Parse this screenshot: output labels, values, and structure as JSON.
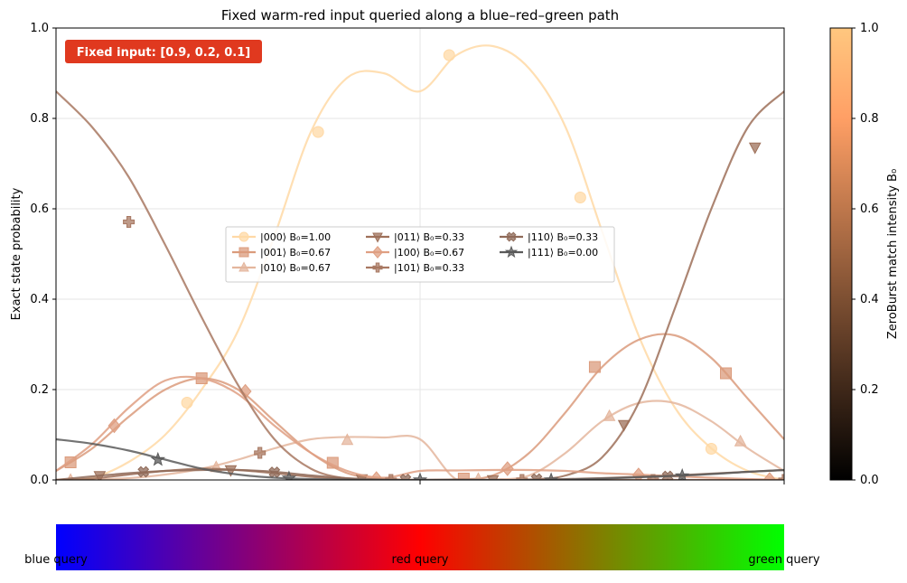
{
  "chart_data": {
    "type": "line",
    "title": "Fixed warm-red input queried along a blue–red–green path",
    "ylabel": "Exact state probability",
    "xlabel": "",
    "ylim": [
      0,
      1
    ],
    "xlim": [
      0,
      1
    ],
    "yticks": [
      0.0,
      0.2,
      0.4,
      0.6,
      0.8,
      1.0
    ],
    "yticklabels": [
      "0.0",
      "0.2",
      "0.4",
      "0.6",
      "0.8",
      "1.0"
    ],
    "grid": true,
    "legend_position": "center",
    "legend_columns": 3,
    "annotation": "Fixed input: [0.9, 0.2, 0.1]",
    "annotation_color": "#e0391f",
    "colorbar": {
      "label": "ZeroBurst match intensity B₀",
      "range": [
        0,
        1
      ],
      "ticks": [
        "0.0",
        "0.2",
        "0.4",
        "0.6",
        "0.8",
        "1.0"
      ],
      "colormap": "copper"
    },
    "gradient_bar": {
      "colors": [
        "#0000ff",
        "#ff0000",
        "#00ff00"
      ],
      "labels": [
        "blue query",
        "red query",
        "green query"
      ]
    },
    "series": [
      {
        "name": "|000⟩  B₀=1.00",
        "color": "#ffd9a6",
        "marker": "circle",
        "x": [
          0,
          0.05,
          0.1,
          0.15,
          0.2,
          0.25,
          0.3,
          0.35,
          0.4,
          0.45,
          0.5,
          0.55,
          0.6,
          0.65,
          0.7,
          0.75,
          0.8,
          0.85,
          0.9,
          0.95,
          1.0
        ],
        "y": [
          0.0,
          0.005,
          0.04,
          0.1,
          0.2,
          0.33,
          0.54,
          0.77,
          0.89,
          0.9,
          0.86,
          0.94,
          0.96,
          0.91,
          0.78,
          0.55,
          0.32,
          0.16,
          0.07,
          0.02,
          0.0
        ],
        "markers_x": [
          0.18,
          0.36,
          0.54,
          0.72,
          0.9
        ],
        "markers_y": [
          0.171,
          0.77,
          0.94,
          0.625,
          0.069
        ]
      },
      {
        "name": "|001⟩  B₀=0.67",
        "color": "#db9b7c",
        "marker": "square",
        "x": [
          0,
          0.05,
          0.1,
          0.15,
          0.2,
          0.25,
          0.3,
          0.35,
          0.4,
          0.45,
          0.5,
          0.55,
          0.6,
          0.65,
          0.7,
          0.75,
          0.8,
          0.85,
          0.9,
          0.95,
          1.0
        ],
        "y": [
          0.02,
          0.07,
          0.14,
          0.2,
          0.225,
          0.2,
          0.13,
          0.06,
          0.015,
          0.003,
          0.0,
          0.001,
          0.01,
          0.06,
          0.15,
          0.25,
          0.31,
          0.32,
          0.27,
          0.18,
          0.09
        ],
        "markers_x": [
          0.02,
          0.2,
          0.38,
          0.56,
          0.74,
          0.92
        ],
        "markers_y": [
          0.039,
          0.225,
          0.038,
          0.003,
          0.25,
          0.236
        ]
      },
      {
        "name": "|010⟩  B₀=0.67",
        "color": "#e4b69d",
        "marker": "triangle-up",
        "x": [
          0,
          0.05,
          0.1,
          0.15,
          0.2,
          0.25,
          0.3,
          0.35,
          0.4,
          0.45,
          0.5,
          0.55,
          0.6,
          0.65,
          0.7,
          0.75,
          0.8,
          0.85,
          0.9,
          0.95,
          1.0
        ],
        "y": [
          0.0,
          0.001,
          0.004,
          0.012,
          0.025,
          0.045,
          0.07,
          0.09,
          0.095,
          0.094,
          0.09,
          0.001,
          0.001,
          0.01,
          0.06,
          0.13,
          0.17,
          0.17,
          0.13,
          0.07,
          0.02
        ],
        "markers_x": [
          0.02,
          0.22,
          0.4,
          0.58,
          0.76,
          0.94
        ],
        "markers_y": [
          0.0,
          0.028,
          0.088,
          0.002,
          0.141,
          0.085
        ]
      },
      {
        "name": "|011⟩  B₀=0.33",
        "color": "#9e7059",
        "marker": "triangle-down",
        "x": [
          0,
          0.05,
          0.1,
          0.15,
          0.2,
          0.25,
          0.3,
          0.35,
          0.4,
          0.45,
          0.5,
          0.55,
          0.6,
          0.65,
          0.7,
          0.75,
          0.8,
          0.85,
          0.9,
          0.95,
          1.0
        ],
        "y": [
          0.0,
          0.003,
          0.012,
          0.02,
          0.025,
          0.022,
          0.015,
          0.007,
          0.002,
          0.0,
          0.0,
          0.001,
          0.0,
          0.001,
          0.01,
          0.05,
          0.17,
          0.38,
          0.6,
          0.78,
          0.86
        ],
        "markers_x": [
          0.06,
          0.24,
          0.42,
          0.6,
          0.78,
          0.96
        ],
        "markers_y": [
          0.009,
          0.022,
          0.002,
          0.0,
          0.122,
          0.736
        ]
      },
      {
        "name": "|100⟩  B₀=0.67",
        "color": "#df9f82",
        "marker": "diamond",
        "x": [
          0,
          0.05,
          0.1,
          0.15,
          0.2,
          0.25,
          0.3,
          0.35,
          0.4,
          0.45,
          0.5,
          0.55,
          0.6,
          0.65,
          0.7,
          0.75,
          0.8,
          0.85,
          0.9,
          0.95,
          1.0
        ],
        "y": [
          0.02,
          0.08,
          0.16,
          0.22,
          0.225,
          0.19,
          0.12,
          0.06,
          0.02,
          0.005,
          0.02,
          0.021,
          0.022,
          0.022,
          0.02,
          0.015,
          0.012,
          0.008,
          0.005,
          0.002,
          0.0
        ],
        "markers_x": [
          0.08,
          0.26,
          0.44,
          0.62,
          0.8,
          0.98
        ],
        "markers_y": [
          0.12,
          0.196,
          0.003,
          0.025,
          0.011,
          0.001
        ]
      },
      {
        "name": "|101⟩  B₀=0.33",
        "color": "#a87862",
        "marker": "plus",
        "x": [
          0,
          0.05,
          0.1,
          0.15,
          0.2,
          0.25,
          0.3,
          0.35,
          0.4,
          0.45,
          0.5,
          0.55,
          0.6,
          0.65,
          0.7,
          0.75,
          0.8,
          0.85,
          0.9,
          0.95,
          1.0
        ],
        "y": [
          0.86,
          0.78,
          0.67,
          0.52,
          0.36,
          0.21,
          0.09,
          0.025,
          0.003,
          0.0,
          0.0,
          0.0,
          0.0,
          0.0,
          0.0,
          0.0,
          0.0,
          0.0,
          0.0,
          0.0,
          0.0
        ],
        "markers_x": [
          0.1,
          0.28,
          0.46,
          0.64,
          0.82,
          1.0
        ],
        "markers_y": [
          0.571,
          0.06,
          0.0,
          0.0,
          0.0,
          0.0
        ]
      },
      {
        "name": "|110⟩  B₀=0.33",
        "color": "#8f6a58",
        "marker": "x",
        "x": [
          0,
          0.05,
          0.1,
          0.15,
          0.2,
          0.25,
          0.3,
          0.35,
          0.4,
          0.45,
          0.5,
          0.55,
          0.6,
          0.65,
          0.7,
          0.75,
          0.8,
          0.85,
          0.9,
          0.95,
          1.0
        ],
        "y": [
          0.0,
          0.008,
          0.015,
          0.02,
          0.022,
          0.022,
          0.018,
          0.01,
          0.004,
          0.001,
          0.0,
          0.0,
          0.0,
          0.0,
          0.002,
          0.004,
          0.007,
          0.01,
          0.014,
          0.018,
          0.022
        ],
        "markers_x": [
          0.12,
          0.3,
          0.48,
          0.66,
          0.84
        ],
        "markers_y": [
          0.018,
          0.017,
          0.001,
          0.002,
          0.008
        ]
      },
      {
        "name": "|111⟩  B₀=0.00",
        "color": "#5a5a5a",
        "marker": "star",
        "x": [
          0,
          0.05,
          0.1,
          0.15,
          0.2,
          0.25,
          0.3,
          0.35,
          0.4,
          0.45,
          0.5,
          0.55,
          0.6,
          0.65,
          0.7,
          0.75,
          0.8,
          0.85,
          0.9,
          0.95,
          1.0
        ],
        "y": [
          0.09,
          0.08,
          0.065,
          0.045,
          0.025,
          0.012,
          0.005,
          0.002,
          0.001,
          0.0,
          0.0,
          0.0,
          0.0,
          0.0,
          0.001,
          0.003,
          0.006,
          0.009,
          0.013,
          0.018,
          0.022
        ],
        "markers_x": [
          0.14,
          0.32,
          0.5,
          0.68,
          0.86
        ],
        "markers_y": [
          0.045,
          0.004,
          0.0,
          0.0,
          0.009
        ]
      }
    ]
  }
}
